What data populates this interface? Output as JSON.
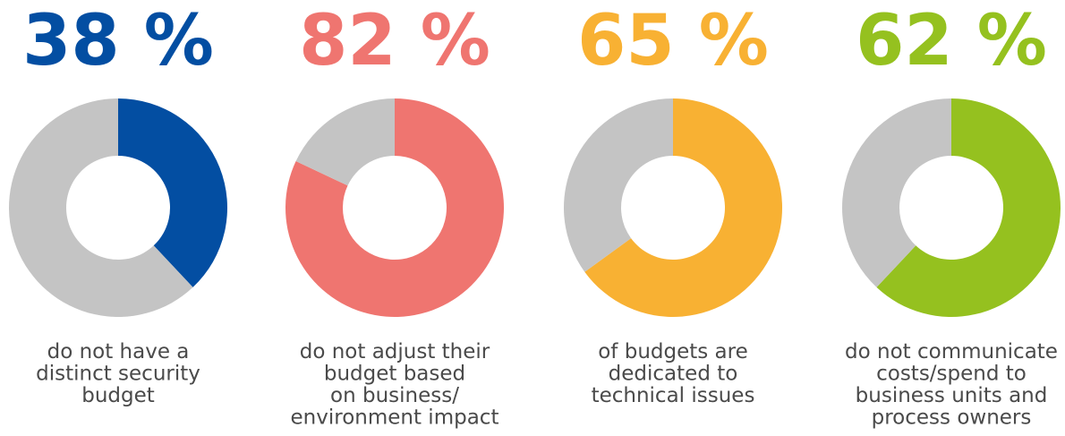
{
  "chart_data": [
    {
      "type": "donut",
      "values": [
        38,
        62
      ],
      "value_labels": [
        "38 %",
        null
      ],
      "colors": [
        "#034ea2",
        "#c4c4c4"
      ],
      "caption": [
        "do not have a",
        "distinct security",
        "budget"
      ]
    },
    {
      "type": "donut",
      "values": [
        82,
        18
      ],
      "value_labels": [
        "82 %",
        null
      ],
      "colors": [
        "#ef7570",
        "#c4c4c4"
      ],
      "caption": [
        "do not adjust their",
        "budget based",
        "on business/",
        "environment impact"
      ]
    },
    {
      "type": "donut",
      "values": [
        65,
        35
      ],
      "value_labels": [
        "65 %",
        null
      ],
      "colors": [
        "#f8b133",
        "#c4c4c4"
      ],
      "caption": [
        "of budgets are",
        "dedicated to",
        "technical issues"
      ]
    },
    {
      "type": "donut",
      "values": [
        62,
        38
      ],
      "value_labels": [
        "62 %",
        null
      ],
      "colors": [
        "#95c11f",
        "#c4c4c4"
      ],
      "caption": [
        "do not communicate",
        "costs/spend to",
        "business units and",
        "process owners"
      ]
    }
  ]
}
